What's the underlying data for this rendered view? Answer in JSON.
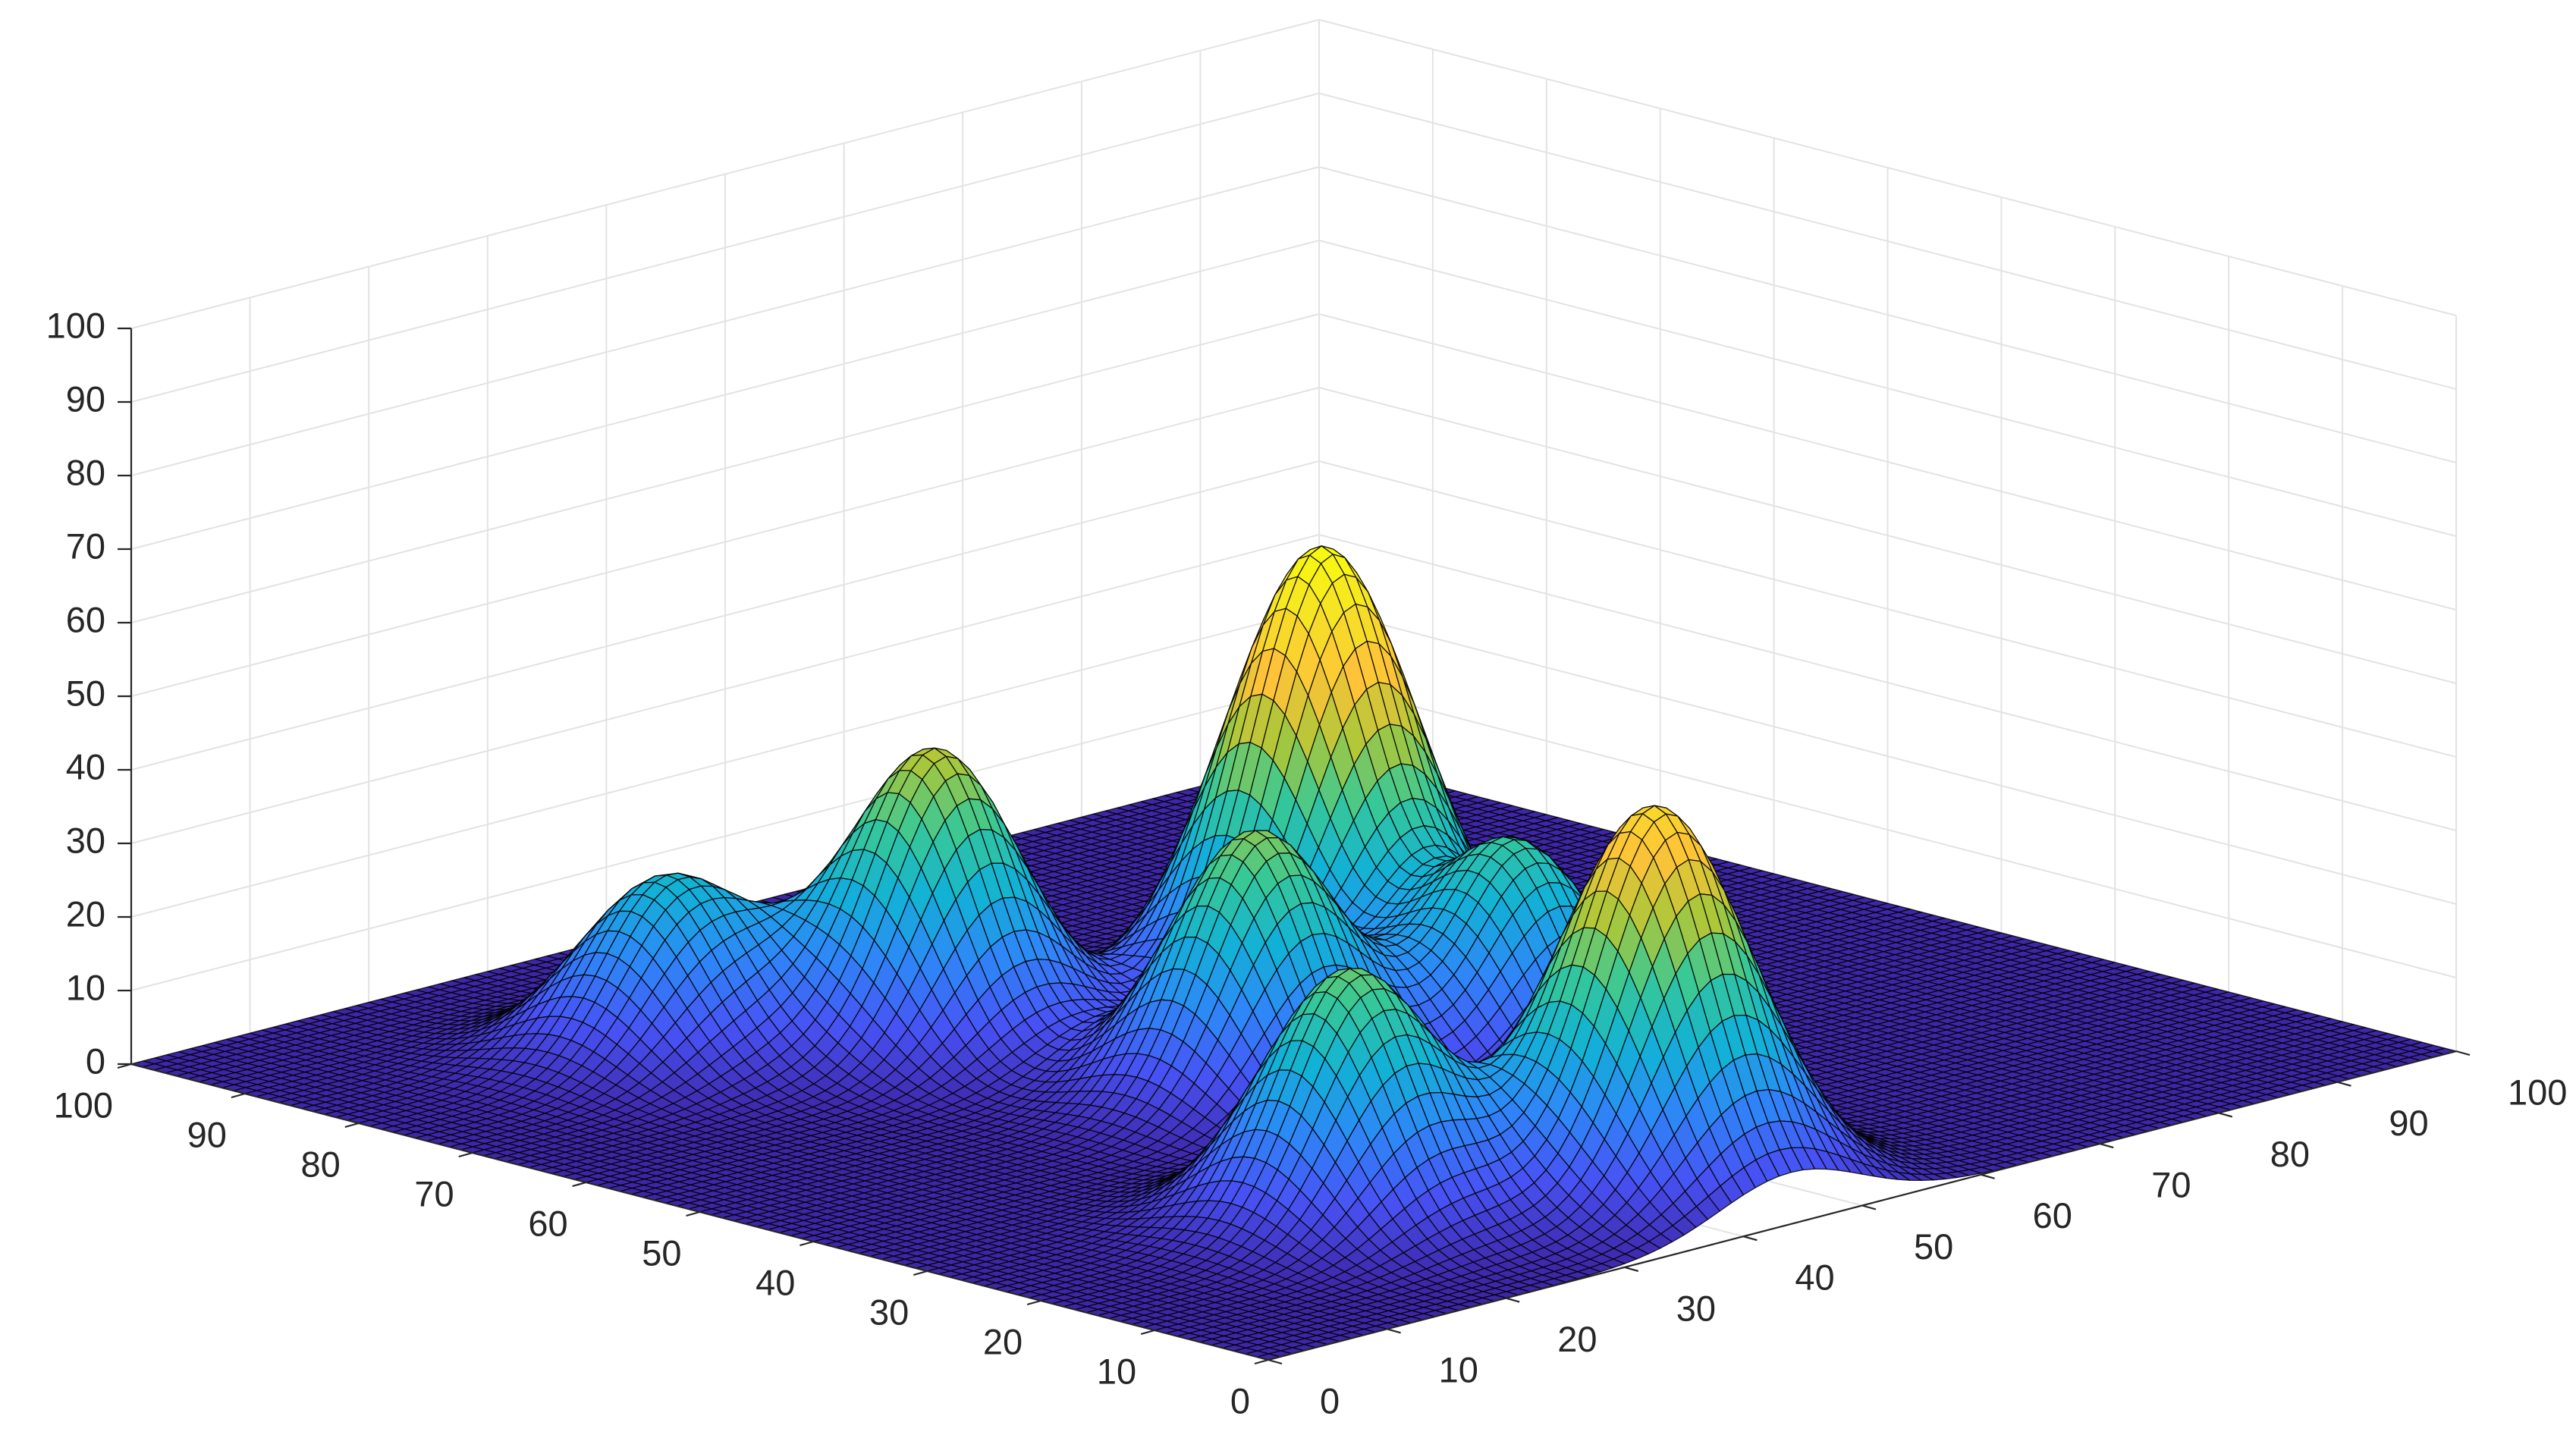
{
  "chart_data": {
    "type": "surface",
    "colormap": "parula",
    "edge_color": "#000000",
    "grid": true,
    "xlim": [
      0,
      100
    ],
    "ylim": [
      0,
      100
    ],
    "zlim": [
      0,
      100
    ],
    "xticks": [
      0,
      10,
      20,
      30,
      40,
      50,
      60,
      70,
      80,
      90,
      100
    ],
    "yticks": [
      0,
      10,
      20,
      30,
      40,
      50,
      60,
      70,
      80,
      90,
      100
    ],
    "zticks": [
      0,
      10,
      20,
      30,
      40,
      50,
      60,
      70,
      80,
      90,
      100
    ],
    "peaks": [
      {
        "x": 24,
        "y": 78,
        "z": 24,
        "sigma": 5.5
      },
      {
        "x": 37,
        "y": 68,
        "z": 40,
        "sigma": 5.5
      },
      {
        "x": 42,
        "y": 45,
        "z": 36,
        "sigma": 5.5
      },
      {
        "x": 60,
        "y": 58,
        "z": 62,
        "sigma": 6
      },
      {
        "x": 59,
        "y": 40,
        "z": 29,
        "sigma": 5.5
      },
      {
        "x": 44,
        "y": 12,
        "z": 52,
        "sigma": 6
      },
      {
        "x": 26,
        "y": 20,
        "z": 34,
        "sigma": 5.5
      }
    ]
  }
}
